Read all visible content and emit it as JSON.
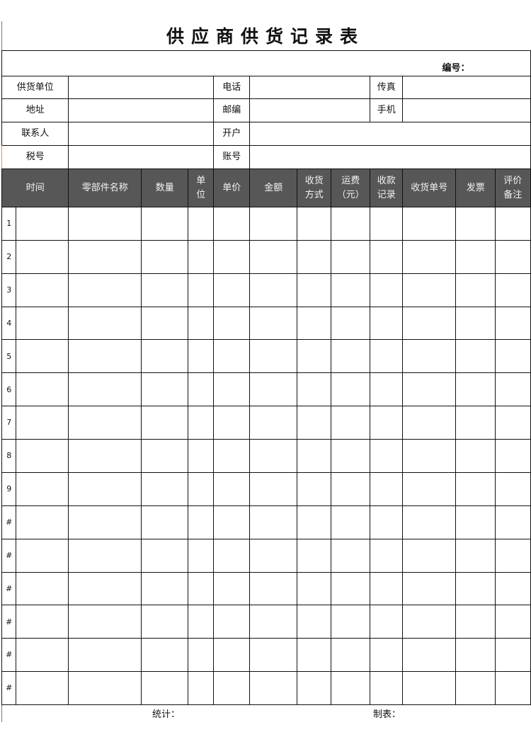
{
  "title": "供应商供货记录表",
  "serial_label": "编号：",
  "info": {
    "supplier_label": "供货单位",
    "phone_label": "电话",
    "fax_label": "传真",
    "address_label": "地址",
    "postcode_label": "邮编",
    "mobile_label": "手机",
    "contact_label": "联系人",
    "bank_label": "开户",
    "tax_label": "税号",
    "account_label": "账号"
  },
  "table": {
    "headers": [
      "",
      "时间",
      "零部件名称",
      "数量",
      "单\n位",
      "单价",
      "金额",
      "收货\n方式",
      "运费\n（元）",
      "收款\n记录",
      "收货单号",
      "发票",
      "评价\n备注"
    ],
    "row_labels": [
      "1",
      "2",
      "3",
      "4",
      "5",
      "6",
      "7",
      "8",
      "9",
      "#",
      "#",
      "#",
      "#",
      "#",
      "#"
    ]
  },
  "footer": {
    "total_label": "统计：",
    "maker_label": "制表："
  }
}
